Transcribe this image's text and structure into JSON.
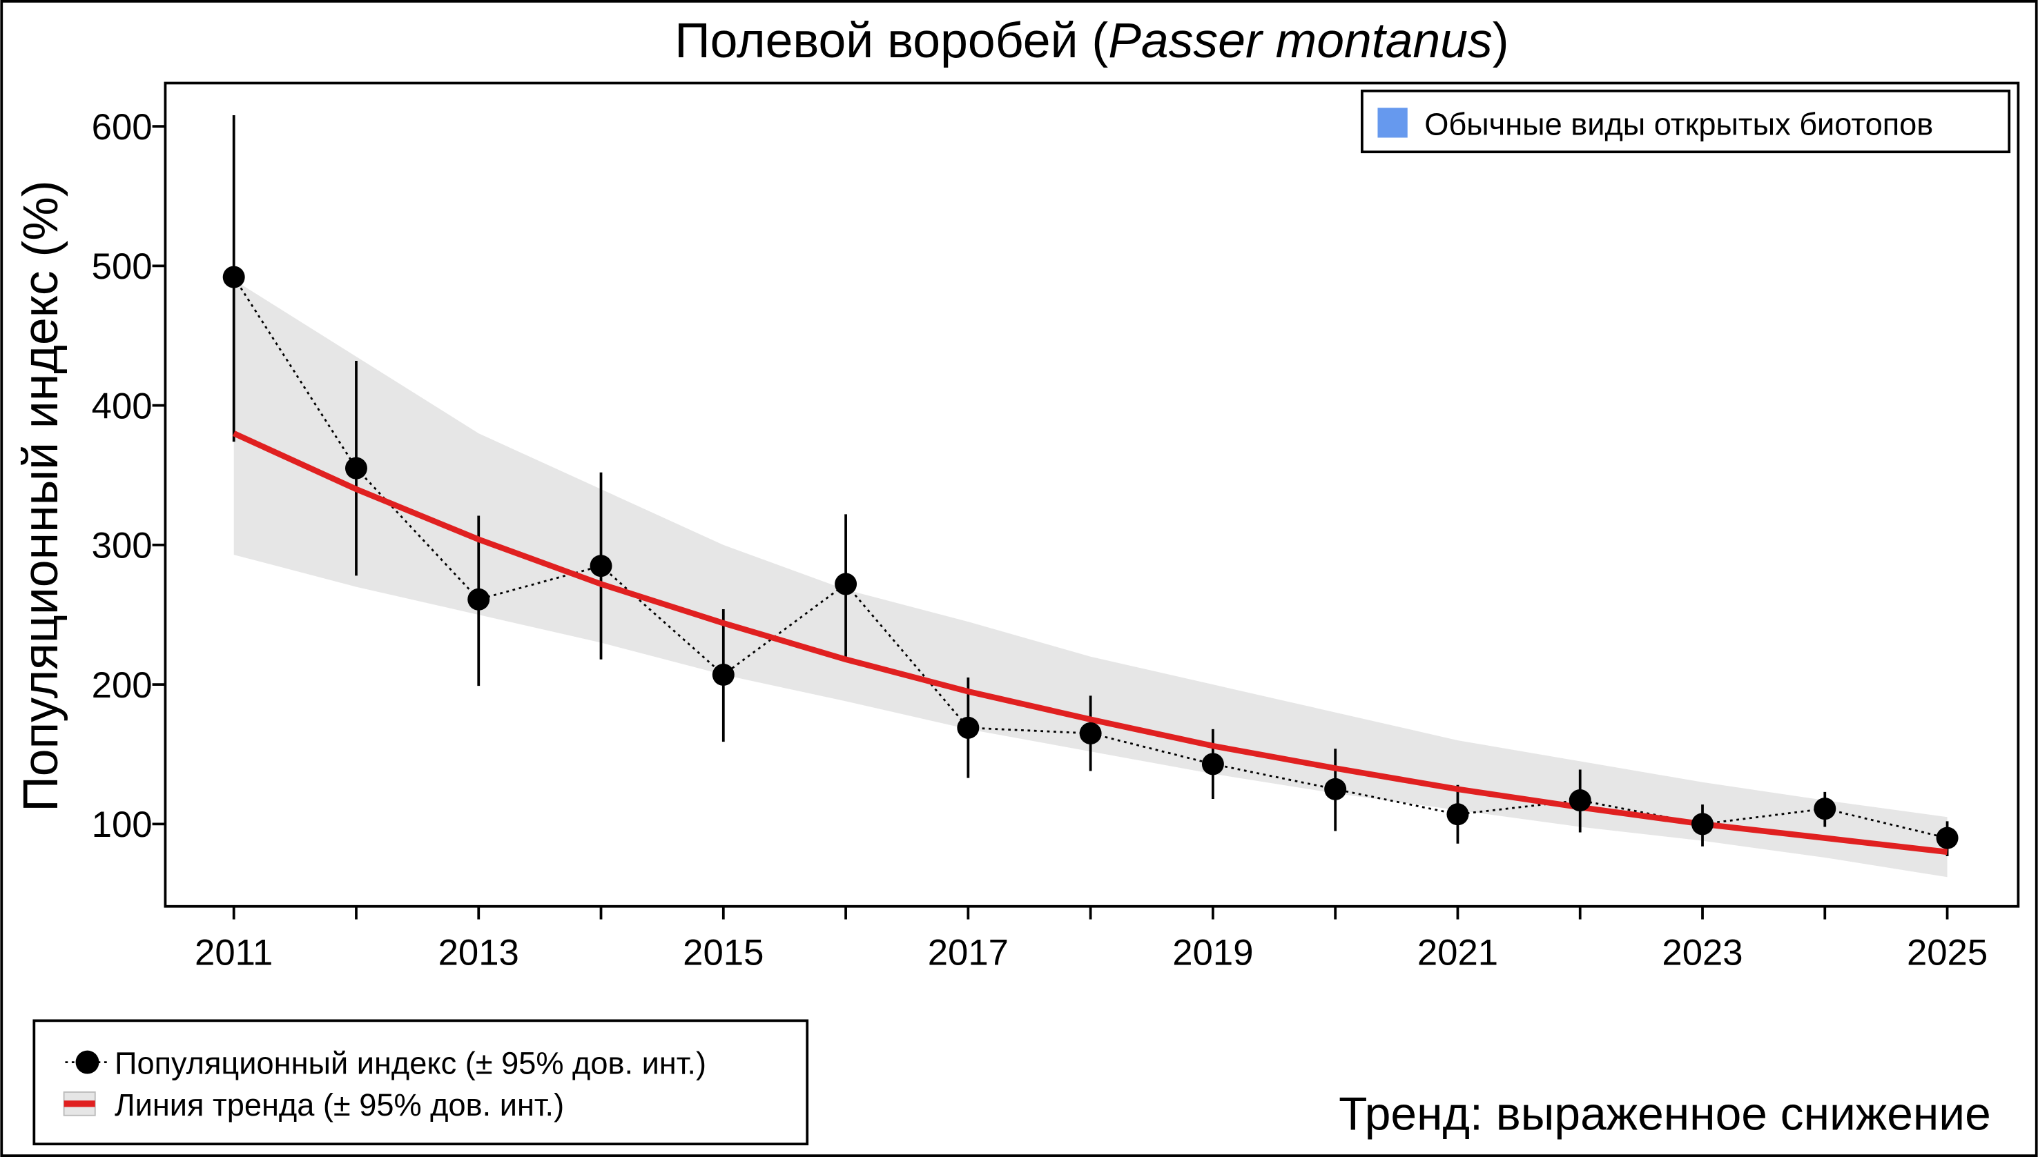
{
  "chart_data": {
    "type": "line",
    "title_prefix": "Полевой воробей (",
    "title_species": "Passer montanus",
    "title_suffix": ")",
    "y_label": "Популяционный индекс (%)",
    "x": [
      2011,
      2012,
      2013,
      2014,
      2015,
      2016,
      2017,
      2018,
      2019,
      2020,
      2021,
      2022,
      2023,
      2024,
      2025
    ],
    "series": [
      {
        "name": "Популяционный индекс (± 95% дов. инт.)",
        "color": "#000000",
        "values": [
          492,
          355,
          261,
          285,
          207,
          272,
          169,
          165,
          143,
          125,
          107,
          117,
          100,
          111,
          90
        ],
        "lower": [
          374,
          278,
          199,
          218,
          159,
          220,
          133,
          138,
          118,
          95,
          86,
          94,
          84,
          98,
          77
        ],
        "upper": [
          608,
          432,
          321,
          352,
          254,
          322,
          205,
          192,
          168,
          154,
          128,
          139,
          114,
          123,
          102
        ]
      },
      {
        "name": "Линия тренда (± 95% дов. инт.)",
        "color": "#e02020",
        "band_color": "#e6e6e6",
        "values": [
          380,
          340,
          304,
          272,
          244,
          218,
          195,
          175,
          156,
          140,
          125,
          112,
          100,
          90,
          80
        ],
        "lower": [
          293,
          270,
          250,
          230,
          207,
          188,
          168,
          152,
          136,
          122,
          110,
          98,
          88,
          76,
          62
        ],
        "upper": [
          490,
          435,
          380,
          340,
          300,
          268,
          245,
          220,
          200,
          180,
          160,
          145,
          130,
          117,
          105
        ]
      }
    ],
    "group_legend": "Обычные виды открытых биотопов",
    "group_color": "#6699ee",
    "trend_label": "Тренд: выраженное снижение",
    "trend_color": "#cc0000",
    "xlim": [
      2010.44,
      2025.58
    ],
    "ylim": [
      41,
      631
    ],
    "xticks": [
      2011,
      2013,
      2015,
      2017,
      2019,
      2021,
      2023,
      2025
    ],
    "xminorticks": [
      2012,
      2014,
      2016,
      2018,
      2020,
      2022,
      2024
    ],
    "yticks": [
      100,
      200,
      300,
      400,
      500,
      600
    ]
  }
}
